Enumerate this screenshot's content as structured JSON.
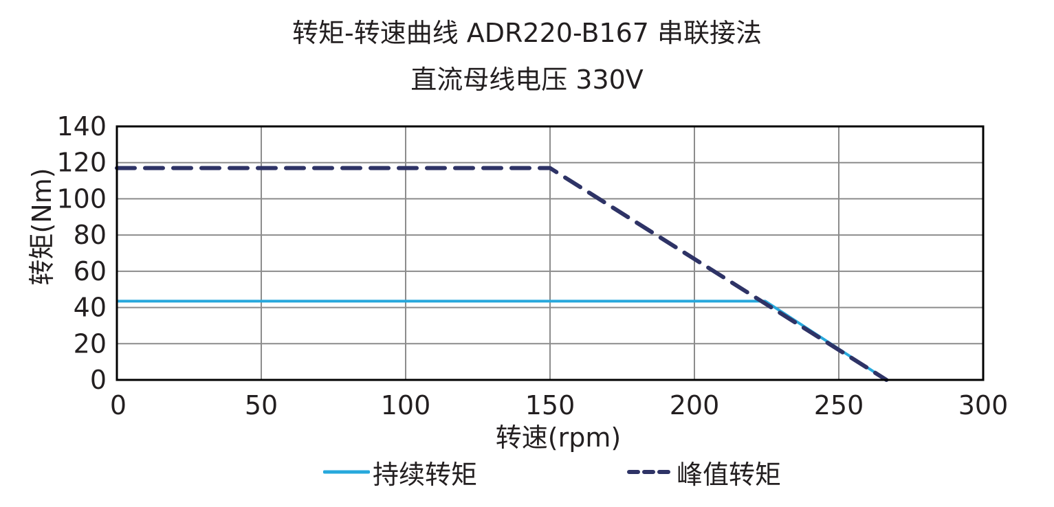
{
  "chart_data": {
    "type": "line",
    "title": "转矩-转速曲线 ADR220-B167 串联接法",
    "subtitle": "直流母线电压 330V",
    "xlabel": "转速(rpm)",
    "ylabel": "转矩(Nm)",
    "xlim": [
      0,
      300
    ],
    "ylim": [
      0,
      140
    ],
    "xticks": [
      0,
      50,
      100,
      150,
      200,
      250,
      300
    ],
    "yticks": [
      0,
      20,
      40,
      60,
      80,
      100,
      120,
      140
    ],
    "grid": true,
    "legend_position": "bottom",
    "series": [
      {
        "name": "持续转矩",
        "style": "solid",
        "color": "#27a8dc",
        "points": [
          [
            0,
            43.5
          ],
          [
            224.5,
            43.5
          ],
          [
            266.5,
            0
          ]
        ]
      },
      {
        "name": "峰值转矩",
        "style": "dashed",
        "color": "#2e3366",
        "points": [
          [
            0,
            117
          ],
          [
            150,
            117
          ],
          [
            266.5,
            0
          ]
        ]
      }
    ]
  },
  "header": {
    "title": "转矩-转速曲线 ADR220-B167 串联接法",
    "subtitle": "直流母线电压 330V"
  },
  "axes": {
    "xlabel": "转速(rpm)",
    "ylabel": "转矩(Nm)",
    "xtick_labels": [
      "0",
      "50",
      "100",
      "150",
      "200",
      "250",
      "300"
    ],
    "ytick_labels": [
      "0",
      "20",
      "40",
      "60",
      "80",
      "100",
      "120",
      "140"
    ]
  },
  "legend": {
    "continuous_label": "持续转矩",
    "peak_label": "峰值转矩"
  }
}
